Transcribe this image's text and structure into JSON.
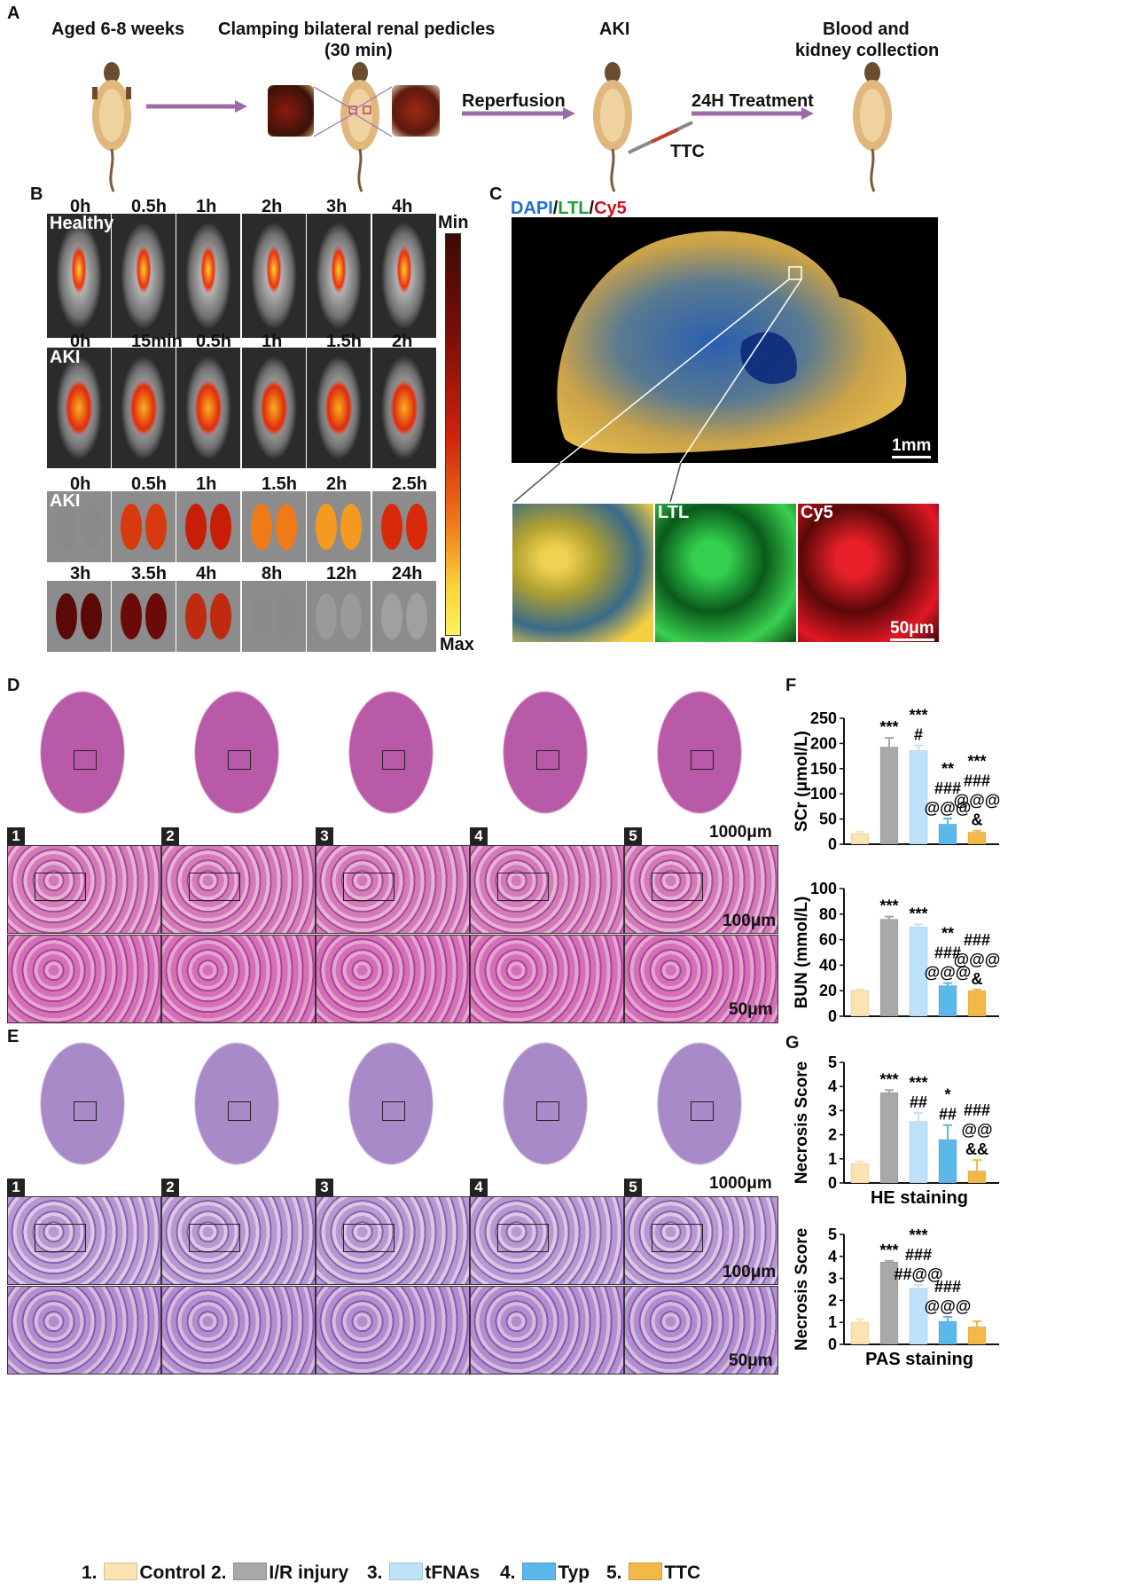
{
  "panels": {
    "A": "A",
    "B": "B",
    "C": "C",
    "D": "D",
    "E": "E",
    "F": "F",
    "G": "G"
  },
  "panelA": {
    "step1": "Aged 6-8 weeks",
    "step2": "Clamping bilateral renal pedicles",
    "step2b": "(30 min)",
    "step3": "AKI",
    "step4": "Blood and",
    "step4b": "kidney collection",
    "arrow2": "Reperfusion",
    "arrow3": "24H Treatment",
    "drug": "TTC"
  },
  "panelB": {
    "row1": [
      "0h",
      "0.5h",
      "1h",
      "2h",
      "3h",
      "4h"
    ],
    "row1_label": "Healthy",
    "row2": [
      "0h",
      "15min",
      "0.5h",
      "1h",
      "1.5h",
      "2h"
    ],
    "row2_label": "AKI",
    "row3": [
      "0h",
      "0.5h",
      "1h",
      "1.5h",
      "2h",
      "2.5h"
    ],
    "row3_label": "AKI",
    "row4": [
      "3h",
      "3.5h",
      "4h",
      "8h",
      "12h",
      "24h"
    ],
    "scale_min": "Min",
    "scale_max": "Max"
  },
  "panelC": {
    "dapi": "DAPI",
    "sep1": "/",
    "ltl": "LTL",
    "sep2": "/",
    "cy5": "Cy5",
    "scale1": "1mm",
    "zoom_ltl": "LTL",
    "zoom_cy5": "Cy5",
    "scale2": "50μm"
  },
  "panelD": {
    "scale1": "1000μm",
    "scale2": "100μm",
    "scale3": "50μm",
    "nums": [
      "1",
      "2",
      "3",
      "4",
      "5"
    ]
  },
  "panelE": {
    "scale1": "1000μm",
    "scale2": "100μm",
    "scale3": "50μm",
    "nums": [
      "1",
      "2",
      "3",
      "4",
      "5"
    ]
  },
  "chart_data": [
    {
      "type": "bar",
      "ylabel": "SCr (μmol/L)",
      "ylim": [
        0,
        250
      ],
      "yticks": [
        "0",
        "50",
        "100",
        "150",
        "200",
        "250"
      ],
      "values": [
        21,
        193,
        186,
        40,
        24
      ],
      "errors": [
        4,
        18,
        10,
        11,
        3
      ],
      "annotations": [
        [
          "",
          "",
          "",
          ""
        ],
        [
          "***",
          "",
          "",
          ""
        ],
        [
          "***",
          "#",
          "",
          ""
        ],
        [
          "**",
          "###",
          "@@@",
          ""
        ],
        [
          "***",
          "###",
          "@@@",
          "&"
        ]
      ]
    },
    {
      "type": "bar",
      "ylabel": "BUN (mmol/L)",
      "ylim": [
        0,
        100
      ],
      "yticks": [
        "0",
        "20",
        "40",
        "60",
        "80",
        "100"
      ],
      "values": [
        20,
        76,
        70,
        24,
        20
      ],
      "errors": [
        1,
        2,
        2,
        2,
        1
      ],
      "annotations": [
        [
          "",
          "",
          "",
          ""
        ],
        [
          "***",
          "",
          "",
          ""
        ],
        [
          "***",
          "",
          "",
          ""
        ],
        [
          "**",
          "###",
          "@@@",
          ""
        ],
        [
          "",
          "###",
          "@@@",
          "&"
        ]
      ]
    },
    {
      "type": "bar",
      "ylabel": "Necrosis Score",
      "xlabel": "HE staining",
      "ylim": [
        0,
        5
      ],
      "yticks": [
        "0",
        "1",
        "2",
        "3",
        "4",
        "5"
      ],
      "values": [
        0.8,
        3.75,
        2.55,
        1.8,
        0.5
      ],
      "errors": [
        0.1,
        0.1,
        0.35,
        0.6,
        0.45
      ],
      "annotations": [
        [
          "",
          "",
          "",
          ""
        ],
        [
          "***",
          "",
          "",
          ""
        ],
        [
          "***",
          "##",
          "",
          ""
        ],
        [
          "*",
          "##",
          "",
          ""
        ],
        [
          "###",
          "@@",
          "&&",
          ""
        ]
      ]
    },
    {
      "type": "bar",
      "ylabel": "Necrosis Score",
      "xlabel": "PAS staining",
      "ylim": [
        0,
        5
      ],
      "yticks": [
        "0",
        "1",
        "2",
        "3",
        "4",
        "5"
      ],
      "values": [
        1.0,
        3.75,
        2.55,
        1.05,
        0.8
      ],
      "errors": [
        0.15,
        0.05,
        0.15,
        0.2,
        0.25
      ],
      "annotations": [
        [
          "",
          "",
          "",
          ""
        ],
        [
          "***",
          "",
          "",
          ""
        ],
        [
          "***",
          "###",
          "##@@",
          ""
        ],
        [
          "",
          "###",
          "@@@",
          ""
        ],
        [
          "",
          "",
          "",
          ""
        ]
      ]
    }
  ],
  "legend": [
    {
      "num": "1.",
      "name": "Control",
      "color": "#fbe3b2"
    },
    {
      "num": "2.",
      "name": "I/R injury",
      "color": "#a8a8a8"
    },
    {
      "num": "3.",
      "name": "tFNAs",
      "color": "#bfe2fb"
    },
    {
      "num": "4.",
      "name": "Typ",
      "color": "#5bb8ea"
    },
    {
      "num": "5.",
      "name": "TTC",
      "color": "#f2b948"
    }
  ]
}
